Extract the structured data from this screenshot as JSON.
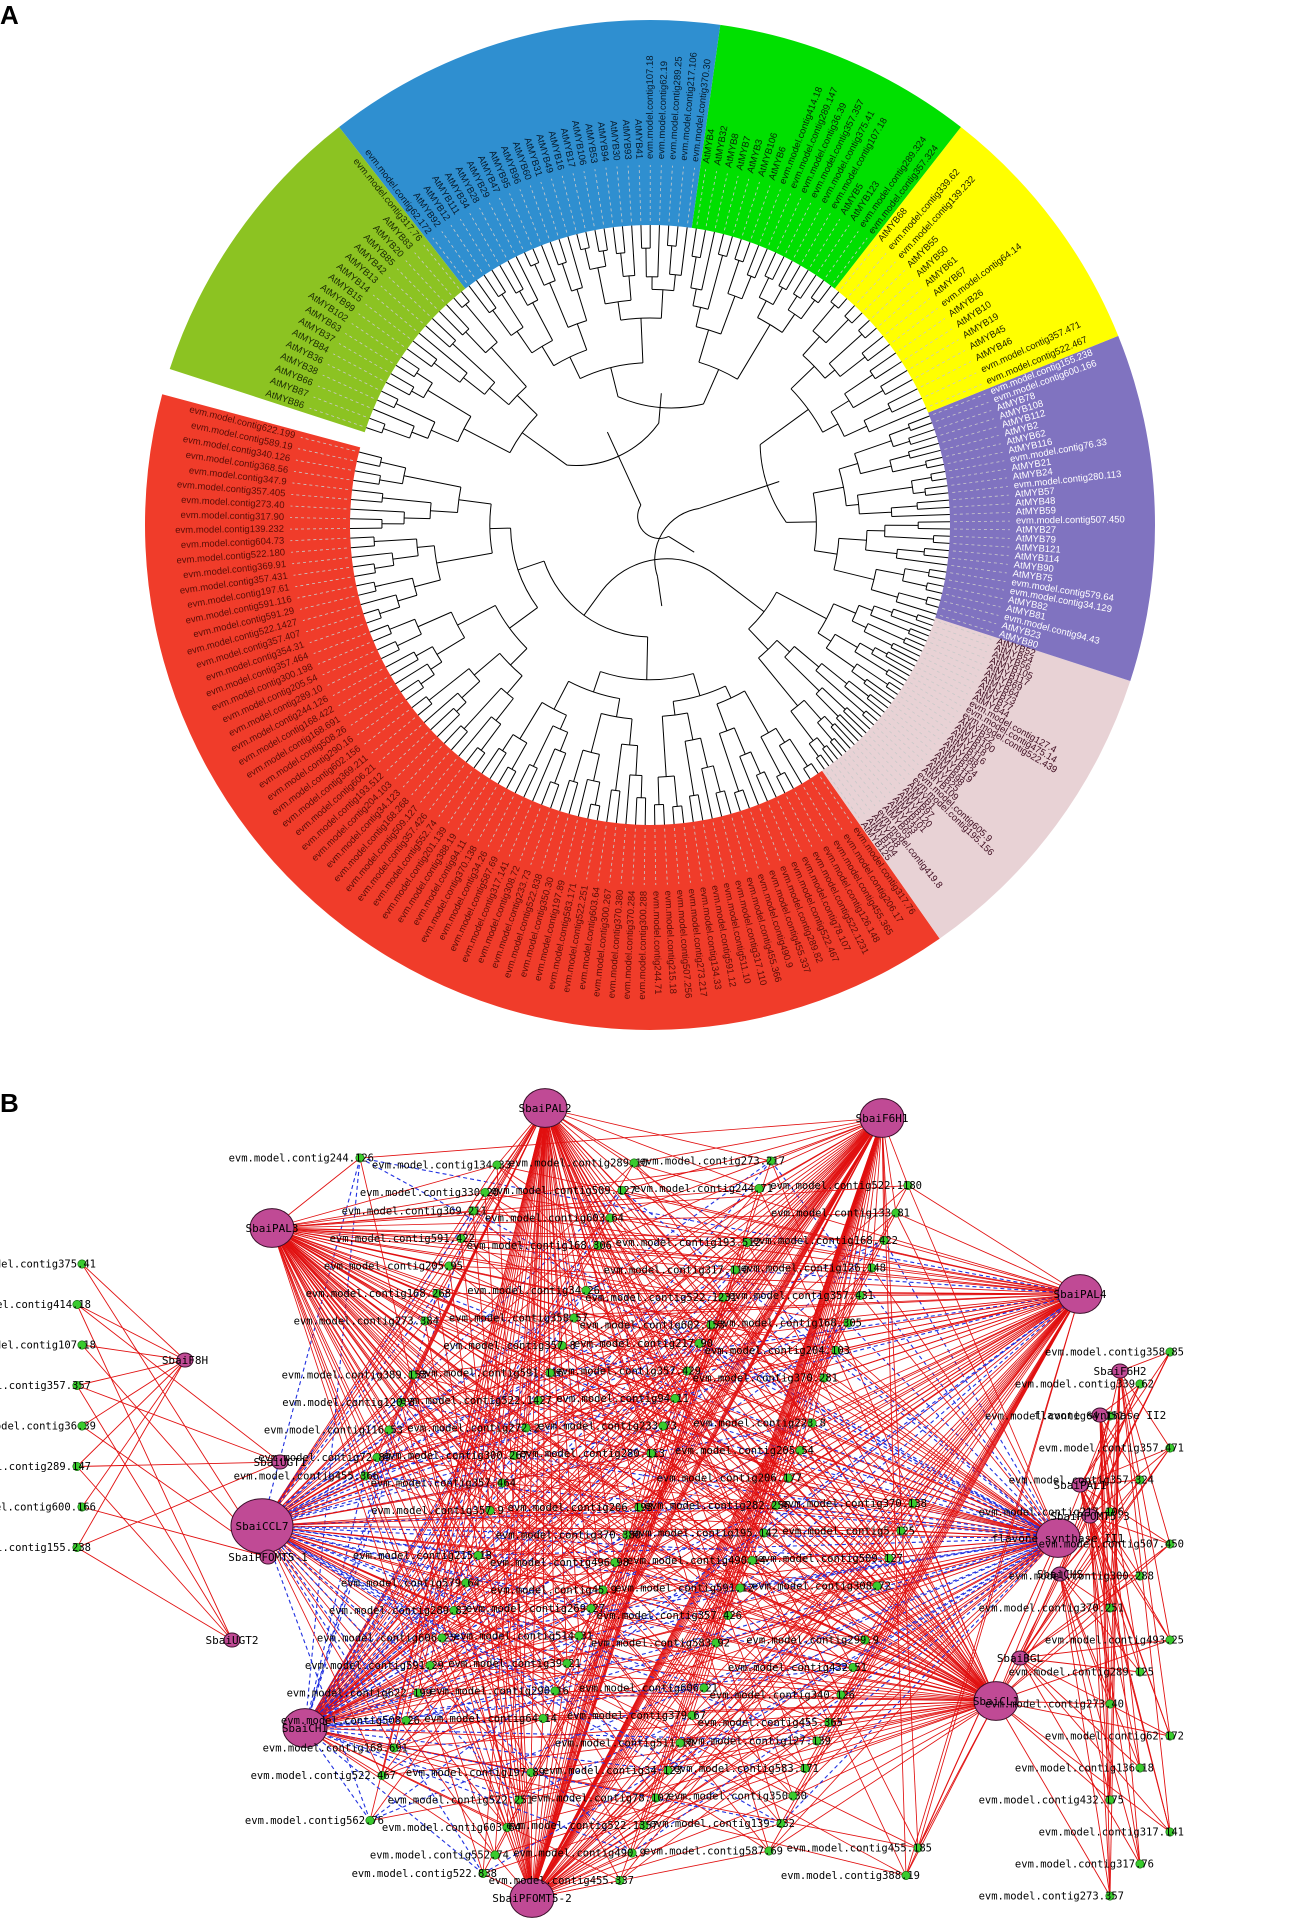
{
  "panel_a": {
    "letter": "A",
    "clades": [
      {
        "color": "#F03C2A",
        "text_color": "#5a0d06",
        "labels": [
          "evm.model.contig317.76",
          "evm.model.contig206.17",
          "evm.model.contig455.365",
          "evm.model.contig126.148",
          "evm.model.contig522.1231",
          "evm.model.contig78.107",
          "evm.model.contig522.467",
          "evm.model.contig289.82",
          "evm.model.contig455.337",
          "evm.model.contig490.9",
          "evm.model.contig455.366",
          "evm.model.contig317.110",
          "evm.model.contig511.10",
          "evm.model.contig591.12",
          "evm.model.contig134.33",
          "evm.model.contig273.217",
          "evm.model.contig507.256",
          "evm.model.contig215.18",
          "evm.model.contig244.71",
          "evm.model.contig300.288",
          "evm.model.contig370.284",
          "evm.model.contig370.380",
          "evm.model.contig300.267",
          "evm.model.contig603.64",
          "evm.model.contig522.251",
          "evm.model.contig583.171",
          "evm.model.contig197.89",
          "evm.model.contig350.30",
          "evm.model.contig522.838",
          "evm.model.contig233.73",
          "evm.model.contig308.72",
          "evm.model.contig317.141",
          "evm.model.contig587.69",
          "evm.model.contig34.26",
          "evm.model.contig370.138",
          "evm.model.contig94.11",
          "evm.model.contig388.19",
          "evm.model.contig201.139",
          "evm.model.contig552.74",
          "evm.model.contig357.426",
          "evm.model.contig509.127",
          "evm.model.contig168.268",
          "evm.model.contig34.123",
          "evm.model.contig204.103",
          "evm.model.contig193.512",
          "evm.model.contig606.21",
          "evm.model.contig369.211",
          "evm.model.contig602.156",
          "evm.model.contig290.16",
          "evm.model.contig508.26",
          "evm.model.contig168.691",
          "evm.model.contig168.422",
          "evm.model.contig244.126",
          "evm.model.contig289.10",
          "evm.model.contig205.54",
          "evm.model.contig300.198",
          "evm.model.contig357.464",
          "evm.model.contig354.31",
          "evm.model.contig357.407",
          "evm.model.contig522.1427",
          "evm.model.contig591.29",
          "evm.model.contig591.116",
          "evm.model.contig197.61",
          "evm.model.contig357.431",
          "evm.model.contig369.91",
          "evm.model.contig522.180",
          "evm.model.contig604.73",
          "evm.model.contig139.232",
          "evm.model.contig317.90",
          "evm.model.contig273.40",
          "evm.model.contig357.405",
          "evm.model.contig347.9",
          "evm.model.contig368.56",
          "evm.model.contig340.126",
          "evm.model.contig589.19",
          "evm.model.contig622.199"
        ]
      },
      {
        "color": "#E8D2D5",
        "text_color": "#3d0a1e",
        "labels": [
          "AtMYB52",
          "AtMYB54",
          "AtMYB56",
          "AtMYB105",
          "AtMYB117",
          "AtMYB69",
          "AtMYB64",
          "AtMYB73",
          "AtMYB77",
          "AtMYB44",
          "evm.model.contig127.4",
          "evm.model.contig475.14",
          "evm.model.contig522.439",
          "AtMYB22",
          "AtMYB100",
          "AtMYB18",
          "AtMYB116",
          "AtMYB88",
          "AtMYB124",
          "AtMYB119",
          "AtMYB98",
          "AtMYB25",
          "AtMYB109",
          "evm.model.contig605.9",
          "evm.model.contig195.156",
          "AtMYB1",
          "AtMYB97",
          "AtMYB120",
          "AtMYB101",
          "AtMYB33",
          "AtMYB65",
          "evm.model.contig419.8",
          "AtMYB48",
          "AtMYB104",
          "AtMYB125"
        ]
      },
      {
        "color": "#8073C0",
        "text_color": "#ffffff",
        "labels": [
          "evm.model.contig155.238",
          "evm.model.contig600.166",
          "AtMYB78",
          "AtMYB108",
          "AtMYB112",
          "AtMYB2",
          "AtMYB62",
          "AtMYB116",
          "evm.model.contig76.33",
          "AtMYB21",
          "AtMYB24",
          "evm.model.contig280.113",
          "AtMYB57",
          "AtMYB48",
          "AtMYB59",
          "evm.model.contig507.450",
          "AtMYB27",
          "AtMYB79",
          "AtMYB121",
          "AtMYB114",
          "AtMYB90",
          "AtMYB75",
          "evm.model.contig579.64",
          "evm.model.contig34.129",
          "AtMYB82",
          "AtMYB81",
          "evm.model.contig94.43",
          "AtMYB23",
          "AtMYB80"
        ]
      },
      {
        "color": "#FFFF00",
        "text_color": "#222200",
        "labels": [
          "AtMYB68",
          "evm.model.contig339.62",
          "evm.model.contig139.232",
          "AtMYB55",
          "AtMYB50",
          "AtMYB61",
          "AtMYB67",
          "evm.model.contig64.14",
          "AtMYB26",
          "AtMYB10",
          "AtMYB19",
          "AtMYB45",
          "AtMYB46",
          "evm.model.contig357.471",
          "evm.model.contig522.467"
        ]
      },
      {
        "color": "#00E000",
        "text_color": "#062806",
        "labels": [
          "AtMYB4",
          "AtMYB32",
          "AtMYB8",
          "AtMYB7",
          "AtMYB3",
          "AtMYB106",
          "AtMYB6",
          "evm.model.contig414.18",
          "evm.model.contig289.147",
          "evm.model.contig36.39",
          "evm.model.contig357.357",
          "evm.model.contig375.41",
          "evm.model.contig107.18",
          "AtMYB5",
          "AtMYB123",
          "evm.model.contig289.324",
          "evm.model.contig357.324"
        ]
      },
      {
        "color": "#2F8FD0",
        "text_color": "#061a2c",
        "labels": [
          "evm.model.contig62.172",
          "AtMYB92",
          "AtMYB12",
          "AtMYB111",
          "AtMYB34",
          "AtMYB28",
          "AtMYB29",
          "AtMYB47",
          "AtMYB95",
          "AtMYB96",
          "AtMYB60",
          "AtMYB31",
          "AtMYB49",
          "AtMYB16",
          "AtMYB17",
          "AtMYB106",
          "AtMYB53",
          "AtMYB94",
          "AtMYB30",
          "AtMYB93",
          "AtMYB41",
          "evm.model.contig107.18",
          "evm.model.contig62.19",
          "evm.model.contig289.25",
          "evm.model.contig217.106",
          "evm.model.contig370.30"
        ]
      },
      {
        "color": "#8CC322",
        "text_color": "#1a2a03",
        "labels": [
          "AtMYB86",
          "AtMYB87",
          "AtMYB66",
          "AtMYB38",
          "AtMYB36",
          "AtMYB84",
          "AtMYB37",
          "AtMYB63",
          "AtMYB102",
          "AtMYB99",
          "AtMYB15",
          "AtMYB14",
          "AtMYB13",
          "AtMYB42",
          "AtMYB85",
          "AtMYB20",
          "AtMYB83",
          "evm.model.contig317.76"
        ]
      }
    ]
  },
  "panel_b": {
    "letter": "B",
    "hubs": [
      {
        "id": "pal2",
        "label": "SbaiPAL2",
        "size": "medium"
      },
      {
        "id": "f6h1",
        "label": "SbaiF6H1",
        "size": "medium"
      },
      {
        "id": "pal3",
        "label": "SbaiPAL3",
        "size": "medium"
      },
      {
        "id": "pal4",
        "label": "SbaiPAL4",
        "size": "medium"
      },
      {
        "id": "f8h",
        "label": "SbaiF8H",
        "size": "small"
      },
      {
        "id": "ugt1",
        "label": "SbaiUGT1",
        "size": "small"
      },
      {
        "id": "ccl7",
        "label": "SbaiCCL7",
        "size": "large"
      },
      {
        "id": "pfomt51",
        "label": "SbaiPFOMT5-1",
        "size": "small"
      },
      {
        "id": "ugt2",
        "label": "SbaiUGT2",
        "size": "small"
      },
      {
        "id": "chi",
        "label": "SbaiCHI",
        "size": "medium"
      },
      {
        "id": "pfomt52",
        "label": "SbaiPFOMT5-2",
        "size": "medium"
      },
      {
        "id": "f6h2",
        "label": "SbaiF6H2",
        "size": "small"
      },
      {
        "id": "fns2",
        "label": "flavone synthase II2",
        "size": "small"
      },
      {
        "id": "pal1",
        "label": "SbaiPAL1",
        "size": "small"
      },
      {
        "id": "pfomt53",
        "label": "SbaiPFOMT5-3",
        "size": "small"
      },
      {
        "id": "fns1",
        "label": "flavone synthase II1",
        "size": "medium"
      },
      {
        "id": "chs",
        "label": "SbaiCHS",
        "size": "small"
      },
      {
        "id": "bgl",
        "label": "SbaiBGL",
        "size": "small"
      },
      {
        "id": "cl",
        "label": "SbaiCL1",
        "size": "medium"
      }
    ],
    "left_genes": [
      "evm.model.contig375.41",
      "evm.model.contig414.18",
      "evm.model.contig107.18",
      "evm.model.contig357.357",
      "evm.model.contig36.39",
      "evm.model.contig289.147",
      "evm.model.contig600.166",
      "evm.model.contig155.238"
    ],
    "right_genes": [
      "evm.model.contig358.85",
      "evm.model.contig339.62",
      "evm.model.contig64.151",
      "evm.model.contig357.471",
      "evm.model.contig357.324",
      "evm.model.contig217.106",
      "evm.model.contig507.450",
      "evm.model.contig300.288",
      "evm.model.contig370.251",
      "evm.model.contig493.25",
      "evm.model.contig289.125",
      "evm.model.contig273.40",
      "evm.model.contig62.172",
      "evm.model.contig136.18",
      "evm.model.contig432.175",
      "evm.model.contig317.141",
      "evm.model.contig317.76",
      "evm.model.contig273.357"
    ],
    "center_genes": [
      "evm.model.contig244.126",
      "evm.model.contig134.33",
      "evm.model.contig289.10",
      "evm.model.contig273.217",
      "evm.model.contig522.1180",
      "evm.model.contig330.20",
      "evm.model.contig509.127",
      "evm.model.contig244.71",
      "evm.model.contig133.81",
      "evm.model.contig369.211",
      "evm.model.contig603.64",
      "evm.model.contig193.512",
      "evm.model.contig168.422",
      "evm.model.contig591.422",
      "evm.model.contig168.306",
      "evm.model.contig317.110",
      "evm.model.contig126.148",
      "evm.model.contig205.95",
      "evm.model.contig34.26",
      "evm.model.contig522.1231",
      "evm.model.contig357.431",
      "evm.model.contig168.268",
      "evm.model.contig358.57",
      "evm.model.contig602.153",
      "evm.model.contig168.305",
      "evm.model.contig273.384",
      "evm.model.contig357.8",
      "evm.model.contig217.90",
      "evm.model.contig204.103",
      "evm.model.contig389.153",
      "evm.model.contig591.116",
      "evm.model.contig357.429",
      "evm.model.contig370.281",
      "evm.model.contig120.3",
      "evm.model.contig522.1427",
      "evm.model.contig94.11",
      "evm.model.contig223.8",
      "evm.model.contig116.53",
      "evm.model.contig272.2",
      "evm.model.contig233.73",
      "evm.model.contig205.54",
      "evm.model.contig72.89",
      "evm.model.contig300.267",
      "evm.model.contig280.113",
      "evm.model.contig206.177",
      "evm.model.contig455.366",
      "evm.model.contig357.464",
      "evm.model.contig206.198",
      "evm.model.contig282.256",
      "evm.model.contig370.138",
      "evm.model.contig357.9",
      "evm.model.contig370.380",
      "evm.model.contig195.142",
      "evm.model.contig5.125",
      "evm.model.contig215.18",
      "evm.model.contig496.98",
      "evm.model.contig490.14",
      "evm.model.contig509.127",
      "evm.model.contig579.64",
      "evm.model.contig45.9",
      "evm.model.contig591.12",
      "evm.model.contig308.72",
      "evm.model.contig289.82",
      "evm.model.contig269.27",
      "evm.model.contig357.426",
      "evm.model.contig299.9",
      "evm.model.contig606.25",
      "evm.model.contig514.31",
      "evm.model.contig583.92",
      "evm.model.contig432.51",
      "evm.model.contig591.29",
      "evm.model.contig39.21",
      "evm.model.contig606.21",
      "evm.model.contig340.126",
      "evm.model.contig622.199",
      "evm.model.contig290.16",
      "evm.model.contig379.67",
      "evm.model.contig455.365",
      "evm.model.contig508.26",
      "evm.model.contig64.14",
      "evm.model.contig511.10",
      "evm.model.contig127.139",
      "evm.model.contig168.691",
      "evm.model.contig197.89",
      "evm.model.contig34.123",
      "evm.model.contig583.171",
      "evm.model.contig522.467",
      "evm.model.contig522.251",
      "evm.model.contig78.107",
      "evm.model.contig350.30",
      "evm.model.contig562.76",
      "evm.model.contig603.64",
      "evm.model.contig522.1357",
      "evm.model.contig139.232",
      "evm.model.contig455.185",
      "evm.model.contig552.74",
      "evm.model.contig490.9",
      "evm.model.contig587.69",
      "evm.model.contig388.19",
      "evm.model.contig522.838",
      "evm.model.contig455.337"
    ]
  }
}
